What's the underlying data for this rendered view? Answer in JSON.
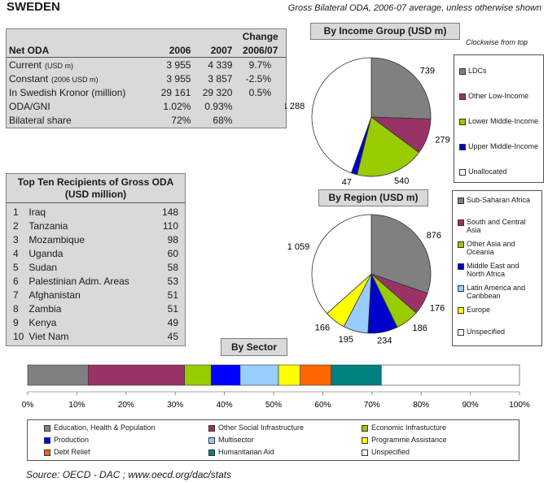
{
  "header": {
    "country": "SWEDEN",
    "subtitle": "Gross Bilateral ODA, 2006-07 average, unless otherwise shown"
  },
  "net_oda_table": {
    "headers": [
      "Net ODA",
      "2006",
      "2007",
      "Change",
      "2006/07"
    ],
    "rows": [
      {
        "label": "Current",
        "unit": "(USD m)",
        "v2006": "3 955",
        "v2007": "4 339",
        "change": "9.7%"
      },
      {
        "label": "Constant",
        "unit": "(2006 USD m)",
        "v2006": "3 955",
        "v2007": "3 857",
        "change": "-2.5%"
      },
      {
        "label": "In Swedish Kronor (million)",
        "unit": "",
        "v2006": "29 161",
        "v2007": "29 320",
        "change": "0.5%"
      },
      {
        "label": "ODA/GNI",
        "unit": "",
        "v2006": "1.02%",
        "v2007": "0.93%",
        "change": ""
      },
      {
        "label": "Bilateral share",
        "unit": "",
        "v2006": "72%",
        "v2007": "68%",
        "change": ""
      }
    ]
  },
  "recipients": {
    "title": "Top Ten Recipients of Gross ODA (USD million)",
    "rows": [
      {
        "rank": "1",
        "name": "Iraq",
        "value": "148"
      },
      {
        "rank": "2",
        "name": "Tanzania",
        "value": "110"
      },
      {
        "rank": "3",
        "name": "Mozambique",
        "value": "98"
      },
      {
        "rank": "4",
        "name": "Uganda",
        "value": "60"
      },
      {
        "rank": "5",
        "name": "Sudan",
        "value": "58"
      },
      {
        "rank": "6",
        "name": "Palestinian Adm. Areas",
        "value": "53"
      },
      {
        "rank": "7",
        "name": "Afghanistan",
        "value": "51"
      },
      {
        "rank": "8",
        "name": "Zambia",
        "value": "51"
      },
      {
        "rank": "9",
        "name": "Kenya",
        "value": "49"
      },
      {
        "rank": "10",
        "name": "Viet Nam",
        "value": "45"
      }
    ]
  },
  "clockwise_note": "Clockwise from top",
  "source": "Source:  OECD - DAC ;  www.oecd.org/dac/stats",
  "chart_data": [
    {
      "type": "pie",
      "title": "By Income Group (USD m)",
      "categories": [
        "LDCs",
        "Other Low-Income",
        "Lower Middle-Income",
        "Upper Middle-Income",
        "Unallocated"
      ],
      "values": [
        739,
        279,
        540,
        47,
        1288
      ],
      "labels": [
        "739",
        "279",
        "540",
        "47",
        "1 288"
      ],
      "colors": [
        "#808080",
        "#993366",
        "#99cc00",
        "#0000cc",
        "#ffffff"
      ]
    },
    {
      "type": "pie",
      "title": "By Region (USD m)",
      "categories": [
        "Sub-Saharan Africa",
        "South and Central Asia",
        "Other Asia and Oceania",
        "Middle East and North Africa",
        "Latin America and Caribbean",
        "Europe",
        "Unspecified"
      ],
      "values": [
        876,
        176,
        186,
        234,
        195,
        166,
        1059
      ],
      "labels": [
        "876",
        "176",
        "186",
        "234",
        "195",
        "166",
        "1 059"
      ],
      "colors": [
        "#808080",
        "#993366",
        "#99cc00",
        "#0000cc",
        "#99ccff",
        "#ffff00",
        "#ffffff"
      ]
    },
    {
      "type": "bar",
      "title": "By Sector",
      "orientation": "stacked-horizontal-100%",
      "categories": [
        "Education, Health & Population",
        "Other Social Infrastructure",
        "Economic Infrastucture",
        "Production",
        "Multisector",
        "Programme Assistance",
        "Debt Relief",
        "Humanitarian Aid",
        "Unspecified"
      ],
      "values": [
        12.3,
        19.6,
        5.4,
        5.9,
        7.8,
        4.4,
        6.3,
        10.2,
        28.1
      ],
      "colors": [
        "#808080",
        "#993366",
        "#99cc00",
        "#0000ff",
        "#99ccff",
        "#ffff00",
        "#ff6600",
        "#008080",
        "#ffffff"
      ],
      "xticks": [
        "0%",
        "10%",
        "20%",
        "30%",
        "40%",
        "50%",
        "60%",
        "70%",
        "80%",
        "90%",
        "100%"
      ],
      "xlim": [
        0,
        100
      ]
    }
  ]
}
